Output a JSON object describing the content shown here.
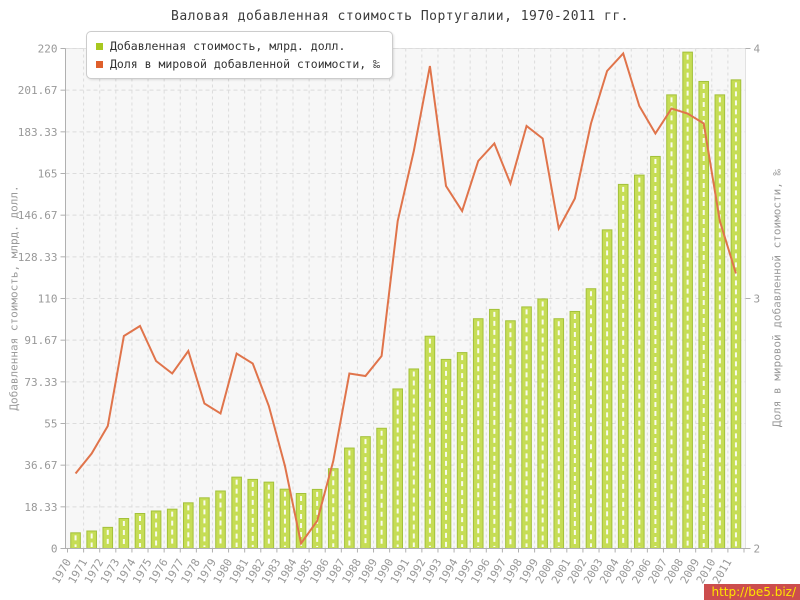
{
  "title": "Валовая добавленная стоимость Португалии, 1970-2011 гг.",
  "legend": [
    {
      "label": "Добавленная стоимость, млрд. долл.",
      "swatch_color": "#a8c820",
      "marker": "bar-swatch"
    },
    {
      "label": "Доля в мировой добавленной стоимости, ‰",
      "swatch_color": "#df5f2b",
      "marker": "line-swatch"
    }
  ],
  "watermark": "http://be5.biz/",
  "colors": {
    "bar_fill": "#c6dd55",
    "bar_stroke": "#a3c13a",
    "bar_center_dash": "#ffffff",
    "line": "#e0744b",
    "grid": "#dcdcdc",
    "plot_bg": "#f7f7f7",
    "plot_border": "#e2e2e2",
    "axis": "#b0b0b0",
    "tick_text": "#999999"
  },
  "chart_data": {
    "type": "bar",
    "title": "Валовая добавленная стоимость Португалии, 1970-2011 гг.",
    "categories": [
      1970,
      1971,
      1972,
      1973,
      1974,
      1975,
      1976,
      1977,
      1978,
      1979,
      1980,
      1981,
      1982,
      1983,
      1984,
      1985,
      1986,
      1987,
      1988,
      1989,
      1990,
      1991,
      1992,
      1993,
      1994,
      1995,
      1996,
      1997,
      1998,
      1999,
      2000,
      2001,
      2002,
      2003,
      2004,
      2005,
      2006,
      2007,
      2008,
      2009,
      2010,
      2011
    ],
    "series": [
      {
        "name": "Добавленная стоимость, млрд. долл.",
        "type": "bar",
        "axis": "left",
        "values": [
          6.9,
          7.7,
          9.3,
          13.2,
          15.4,
          16.5,
          17.3,
          20.1,
          22.3,
          25.3,
          31.4,
          30.4,
          29.2,
          26.1,
          24.2,
          26.0,
          35.1,
          44.2,
          49.2,
          52.9,
          70.2,
          79.0,
          93.4,
          83.2,
          86.2,
          101.1,
          105.2,
          100.2,
          106.3,
          109.8,
          101.1,
          104.3,
          114.3,
          140.2,
          160.2,
          164.3,
          172.5,
          199.6,
          218.4,
          205.5,
          199.6,
          206.2
        ]
      },
      {
        "name": "Доля в мировой добавленной стоимости, ‰",
        "type": "line",
        "axis": "right",
        "values": [
          2.3,
          2.38,
          2.49,
          2.85,
          2.89,
          2.75,
          2.7,
          2.79,
          2.58,
          2.54,
          2.78,
          2.74,
          2.57,
          2.33,
          2.02,
          2.11,
          2.35,
          2.7,
          2.69,
          2.77,
          3.31,
          3.59,
          3.93,
          3.45,
          3.35,
          3.55,
          3.62,
          3.46,
          3.69,
          3.64,
          3.28,
          3.4,
          3.7,
          3.91,
          3.98,
          3.77,
          3.66,
          3.76,
          3.74,
          3.7,
          3.31,
          3.1
        ]
      }
    ],
    "left_axis": {
      "label": "Добавленная стоимость, млрд. долл.",
      "range": [
        0,
        220
      ],
      "tick_labels": [
        "0",
        "18.33",
        "36.67",
        "55",
        "73.33",
        "91.67",
        "110",
        "128.33",
        "146.67",
        "165",
        "183.33",
        "201.67",
        "220"
      ]
    },
    "right_axis": {
      "label": "Доля в мировой добавленной стоимости, ‰",
      "range": [
        2,
        4
      ],
      "tick_labels": [
        "2",
        "3",
        "4"
      ]
    },
    "grid": true,
    "legend_position": "top-left",
    "x_tick_rotation": -60
  }
}
